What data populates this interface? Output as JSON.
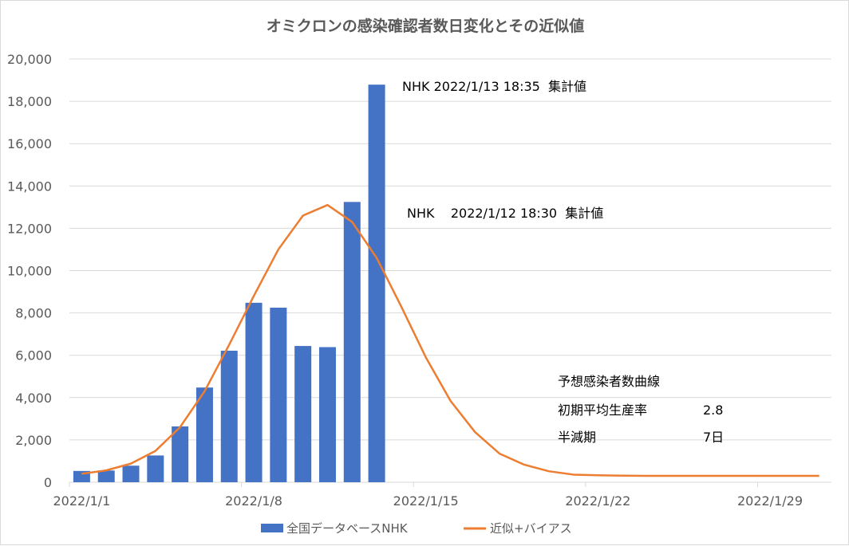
{
  "chart_data": {
    "type": "bar+line",
    "title": "オミクロンの感染確認者数日変化とその近似値",
    "xlabel": "",
    "ylabel": "",
    "ylim": [
      0,
      20000
    ],
    "yticks": [
      "0",
      "2,000",
      "4,000",
      "6,000",
      "8,000",
      "10,000",
      "12,000",
      "14,000",
      "16,000",
      "18,000",
      "20,000"
    ],
    "ytick_values": [
      0,
      2000,
      4000,
      6000,
      8000,
      10000,
      12000,
      14000,
      16000,
      18000,
      20000
    ],
    "x_start": "2022/1/1",
    "num_days": 31,
    "xticks": [
      "2022/1/1",
      "2022/1/8",
      "2022/1/15",
      "2022/1/22",
      "2022/1/29"
    ],
    "xtick_day_index": [
      0,
      7,
      14,
      21,
      28
    ],
    "grid": true,
    "legend_position": "bottom",
    "series": [
      {
        "name": "全国データベースNHK",
        "type": "bar",
        "color": "#4472C4",
        "values": [
          534,
          553,
          782,
          1265,
          2638,
          4475,
          6214,
          8480,
          8249,
          6438,
          6384,
          13244,
          18787
        ]
      },
      {
        "name": "近似+バイアス",
        "type": "line",
        "color": "#ED7D31",
        "values": [
          400,
          560,
          880,
          1480,
          2600,
          4300,
          6500,
          8800,
          11000,
          12600,
          13100,
          12300,
          10600,
          8300,
          5900,
          3850,
          2370,
          1350,
          830,
          520,
          360,
          330,
          310,
          300,
          300,
          300,
          300,
          300,
          300,
          300,
          300
        ]
      }
    ],
    "annotations": [
      {
        "text": "NHK 2022/1/13 18:35  集計値"
      },
      {
        "text": "NHK    2022/1/12 18:30  集計値"
      }
    ],
    "info_box": {
      "title": "予想感染者数曲線",
      "rows": [
        {
          "label": "初期平均生産率",
          "value": "2.8"
        },
        {
          "label": "半減期",
          "value": "7日"
        }
      ]
    }
  }
}
